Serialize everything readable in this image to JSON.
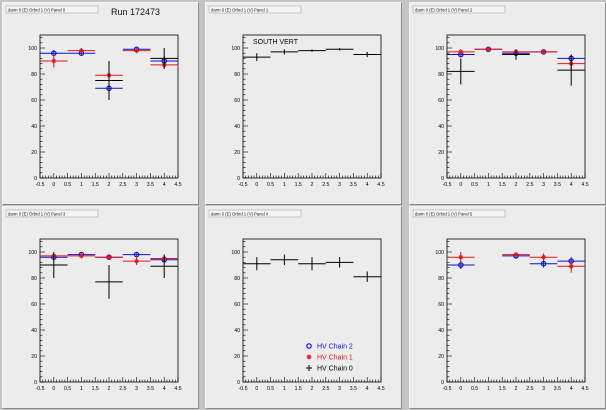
{
  "run_label": "Run 172473",
  "colors": {
    "chain2": "#1010d0",
    "chain1": "#e01818",
    "chain0": "#000000"
  },
  "legend": [
    {
      "label": "HV Chain 2",
      "series": "chain2",
      "marker": "circle"
    },
    {
      "label": "HV Chain 1",
      "series": "chain1",
      "marker": "star"
    },
    {
      "label": "HV Chain 0",
      "series": "chain0",
      "marker": "cross"
    }
  ],
  "chart_data": [
    {
      "type": "scatter",
      "title": "darm 0 (E) Orbrd 1 (V) Panel 0",
      "annotation": "",
      "xlim": [
        -0.5,
        4.5
      ],
      "ylim": [
        0,
        110
      ],
      "xticks": [
        "-0.5",
        "0",
        "0.5",
        "1",
        "1.5",
        "2",
        "2.5",
        "3",
        "3.5",
        "4",
        "4.5"
      ],
      "yticks": [
        "0",
        "20",
        "40",
        "60",
        "80",
        "100"
      ],
      "series": [
        {
          "key": "chain2",
          "x": [
            0,
            1,
            2,
            3,
            4
          ],
          "y": [
            96,
            96,
            69,
            99,
            90
          ],
          "err": [
            2,
            2,
            3,
            1,
            4
          ]
        },
        {
          "key": "chain1",
          "x": [
            0,
            1,
            2,
            3,
            4
          ],
          "y": [
            90,
            98,
            79,
            98,
            87
          ],
          "err": [
            5,
            2,
            7,
            2,
            3
          ]
        },
        {
          "key": "chain0",
          "x": [
            2,
            4
          ],
          "y": [
            75,
            92
          ],
          "err": [
            15,
            8
          ]
        }
      ]
    },
    {
      "type": "scatter",
      "title": "darm 0 (E) Orbrd 1 (V) Panel 1",
      "annotation": "SOUTH VERT",
      "xlim": [
        -0.5,
        4.5
      ],
      "ylim": [
        0,
        110
      ],
      "xticks": [
        "-0.5",
        "0",
        "0.5",
        "1",
        "1.5",
        "2",
        "2.5",
        "3",
        "3.5",
        "4",
        "4.5"
      ],
      "yticks": [
        "0",
        "20",
        "40",
        "60",
        "80",
        "100"
      ],
      "series": [
        {
          "key": "chain0",
          "x": [
            0,
            1,
            2,
            3,
            4
          ],
          "y": [
            93,
            97,
            98,
            99,
            95
          ],
          "err": [
            3,
            2,
            1,
            1,
            2
          ]
        }
      ]
    },
    {
      "type": "scatter",
      "title": "darm 0 (E) Orbrd 1 (V) Panel 2",
      "annotation": "",
      "xlim": [
        -0.5,
        4.5
      ],
      "ylim": [
        0,
        110
      ],
      "xticks": [
        "-0.5",
        "0",
        "0.5",
        "1",
        "1.5",
        "2",
        "2.5",
        "3",
        "3.5",
        "4",
        "4.5"
      ],
      "yticks": [
        "0",
        "20",
        "40",
        "60",
        "80",
        "100"
      ],
      "series": [
        {
          "key": "chain2",
          "x": [
            0,
            1,
            2,
            3,
            4
          ],
          "y": [
            95,
            99,
            96,
            97,
            92
          ],
          "err": [
            2,
            1,
            2,
            1,
            3
          ]
        },
        {
          "key": "chain1",
          "x": [
            0,
            1,
            2,
            3,
            4
          ],
          "y": [
            97,
            99,
            97,
            97,
            88
          ],
          "err": [
            2,
            1,
            2,
            1,
            5
          ]
        },
        {
          "key": "chain0",
          "x": [
            0,
            2,
            4
          ],
          "y": [
            82,
            95,
            83
          ],
          "err": [
            10,
            4,
            12
          ]
        }
      ]
    },
    {
      "type": "scatter",
      "title": "darm 0 (E) Orbrd 1 (V) Panel 3",
      "annotation": "",
      "xlim": [
        -0.5,
        4.5
      ],
      "ylim": [
        0,
        110
      ],
      "xticks": [
        "-0.5",
        "0",
        "0.5",
        "1",
        "1.5",
        "2",
        "2.5",
        "3",
        "3.5",
        "4",
        "4.5"
      ],
      "yticks": [
        "0",
        "20",
        "40",
        "60",
        "80",
        "100"
      ],
      "series": [
        {
          "key": "chain2",
          "x": [
            0,
            1,
            2,
            3,
            4
          ],
          "y": [
            96,
            98,
            96,
            98,
            94
          ],
          "err": [
            2,
            1,
            2,
            1,
            2
          ]
        },
        {
          "key": "chain1",
          "x": [
            0,
            1,
            2,
            3,
            4
          ],
          "y": [
            97,
            97,
            96,
            93,
            95
          ],
          "err": [
            2,
            2,
            2,
            3,
            3
          ]
        },
        {
          "key": "chain0",
          "x": [
            0,
            2,
            4
          ],
          "y": [
            90,
            77,
            89
          ],
          "err": [
            10,
            13,
            9
          ]
        }
      ]
    },
    {
      "type": "scatter",
      "title": "darm 0 (E) Orbrd 1 (V) Panel 4",
      "annotation": "",
      "xlim": [
        -0.5,
        4.5
      ],
      "ylim": [
        0,
        110
      ],
      "xticks": [
        "-0.5",
        "0",
        "0.5",
        "1",
        "1.5",
        "2",
        "2.5",
        "3",
        "3.5",
        "4",
        "4.5"
      ],
      "yticks": [
        "0",
        "20",
        "40",
        "60",
        "80",
        "100"
      ],
      "series": [
        {
          "key": "chain0",
          "x": [
            0,
            1,
            2,
            3,
            4
          ],
          "y": [
            91,
            94,
            91,
            92,
            81
          ],
          "err": [
            5,
            4,
            5,
            4,
            4
          ]
        }
      ]
    },
    {
      "type": "scatter",
      "title": "darm 0 (E) Orbrd 1 (V) Panel 5",
      "annotation": "",
      "xlim": [
        -0.5,
        4.5
      ],
      "ylim": [
        0,
        110
      ],
      "xticks": [
        "-0.5",
        "0",
        "0.5",
        "1",
        "1.5",
        "2",
        "2.5",
        "3",
        "3.5",
        "4",
        "4.5"
      ],
      "yticks": [
        "0",
        "20",
        "40",
        "60",
        "80",
        "100"
      ],
      "series": [
        {
          "key": "chain2",
          "x": [
            0,
            2,
            3,
            4
          ],
          "y": [
            90,
            97,
            91,
            93
          ],
          "err": [
            3,
            2,
            3,
            3
          ]
        },
        {
          "key": "chain1",
          "x": [
            0,
            2,
            3,
            4
          ],
          "y": [
            96,
            98,
            96,
            89
          ],
          "err": [
            4,
            2,
            3,
            5
          ]
        }
      ]
    }
  ]
}
